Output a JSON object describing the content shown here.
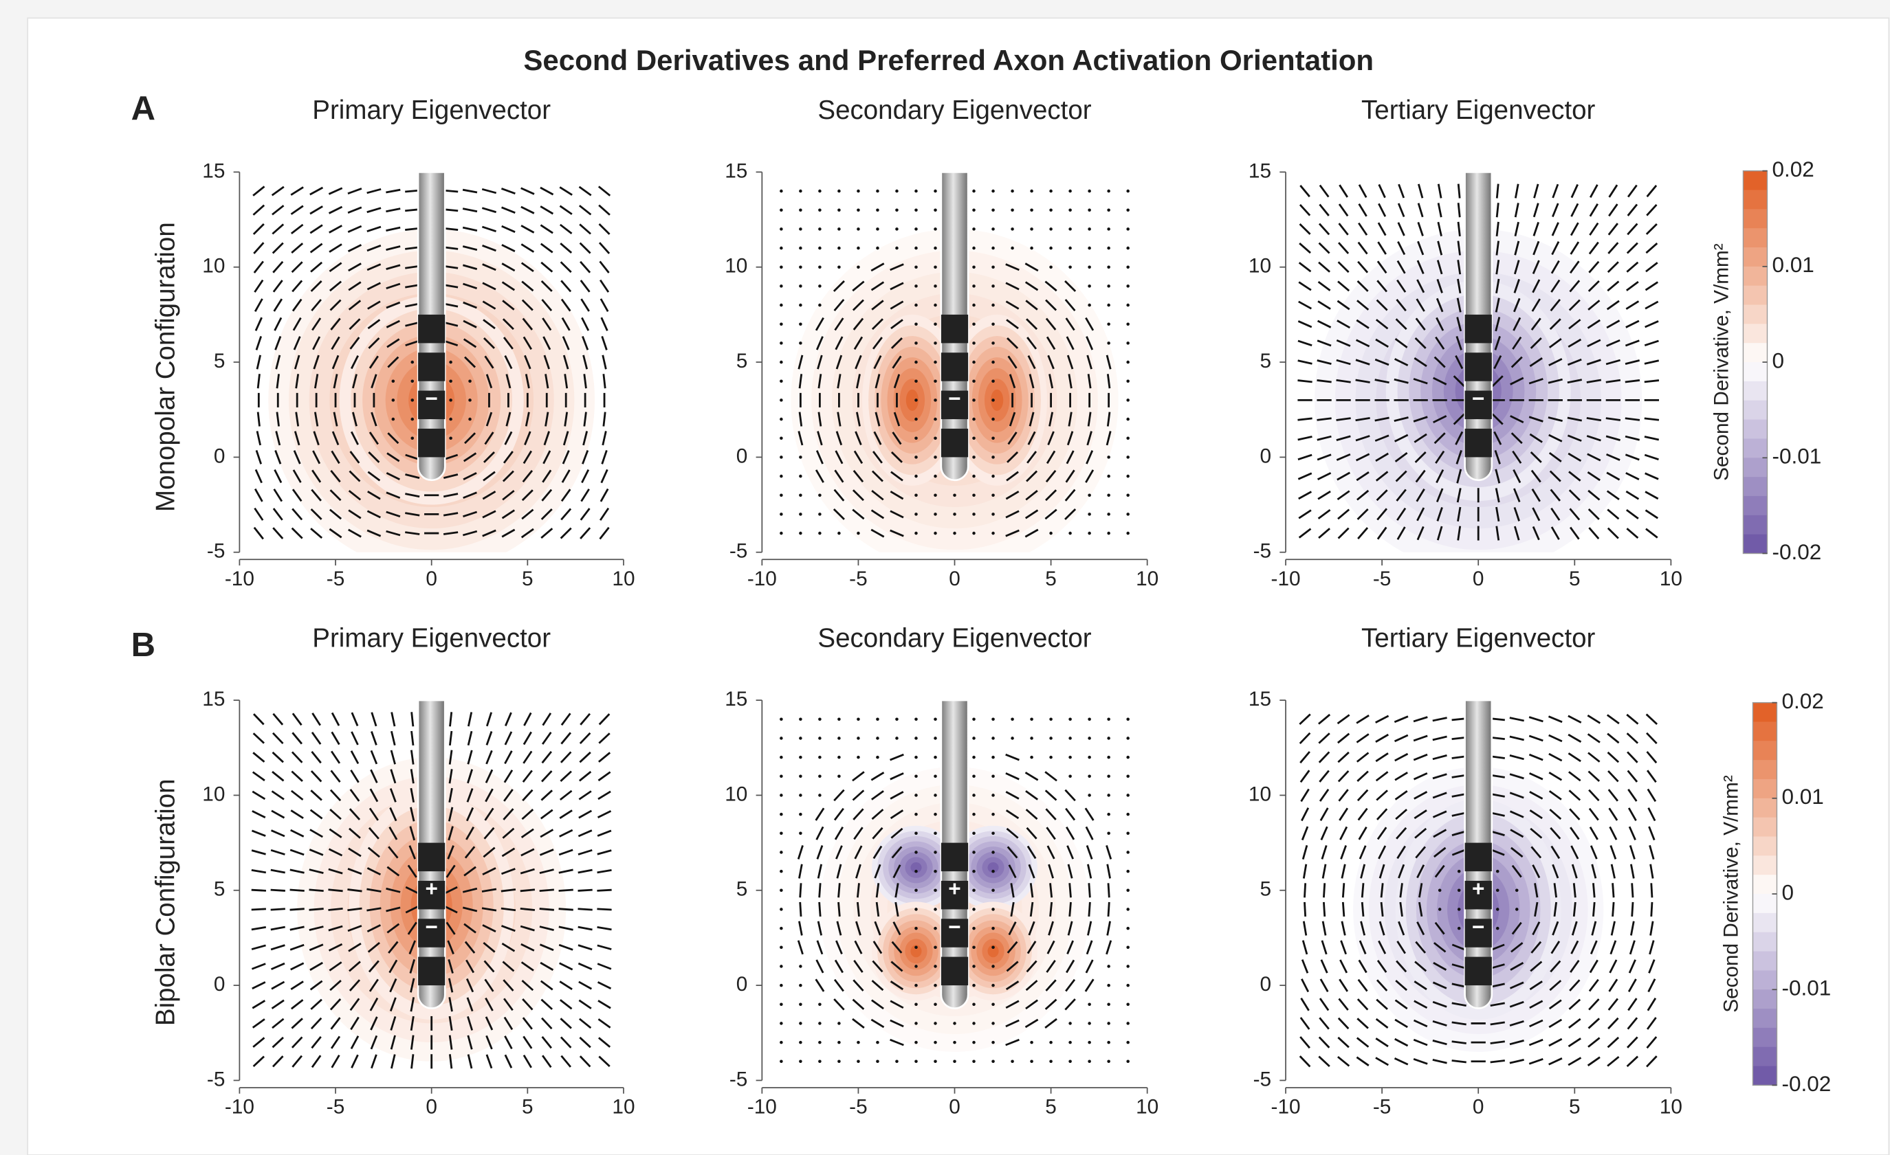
{
  "title": "Second Derivatives and Preferred Axon Activation Orientation",
  "panel_labels": [
    "A",
    "B"
  ],
  "row_labels": [
    "Monopolar Configuration",
    "Bipolar Configuration"
  ],
  "chart_data": [
    {
      "type": "heatmap",
      "title": "Primary Eigenvector",
      "xlim": [
        -10,
        10
      ],
      "ylim": [
        -5,
        15
      ],
      "xticks": [
        -10,
        -5,
        0,
        5,
        10
      ],
      "yticks": [
        -5,
        0,
        5,
        10,
        15
      ],
      "electrode_labels": [
        "−"
      ]
    },
    {
      "type": "heatmap",
      "title": "Secondary Eigenvector",
      "xlim": [
        -10,
        10
      ],
      "ylim": [
        -5,
        15
      ],
      "xticks": [
        -10,
        -5,
        0,
        5,
        10
      ],
      "yticks": [
        -5,
        0,
        5,
        10,
        15
      ],
      "electrode_labels": [
        "−"
      ]
    },
    {
      "type": "heatmap",
      "title": "Tertiary Eigenvector",
      "xlim": [
        -10,
        10
      ],
      "ylim": [
        -5,
        15
      ],
      "xticks": [
        -10,
        -5,
        0,
        5,
        10
      ],
      "yticks": [
        -5,
        0,
        5,
        10,
        15
      ],
      "electrode_labels": [
        "−"
      ]
    },
    {
      "type": "heatmap",
      "title": "Primary Eigenvector",
      "xlim": [
        -10,
        10
      ],
      "ylim": [
        -5,
        15
      ],
      "xticks": [
        -10,
        -5,
        0,
        5,
        10
      ],
      "yticks": [
        -5,
        0,
        5,
        10,
        15
      ],
      "electrode_labels": [
        "+",
        "−"
      ]
    },
    {
      "type": "heatmap",
      "title": "Secondary Eigenvector",
      "xlim": [
        -10,
        10
      ],
      "ylim": [
        -5,
        15
      ],
      "xticks": [
        -10,
        -5,
        0,
        5,
        10
      ],
      "yticks": [
        -5,
        0,
        5,
        10,
        15
      ],
      "electrode_labels": [
        "+",
        "−"
      ]
    },
    {
      "type": "heatmap",
      "title": "Tertiary Eigenvector",
      "xlim": [
        -10,
        10
      ],
      "ylim": [
        -5,
        15
      ],
      "xticks": [
        -10,
        -5,
        0,
        5,
        10
      ],
      "yticks": [
        -5,
        0,
        5,
        10,
        15
      ],
      "electrode_labels": [
        "+",
        "−"
      ]
    }
  ],
  "colorbars": [
    {
      "label": "Second Derivative, V/mm²",
      "lim": [
        -0.02,
        0.02
      ],
      "ticks": [
        0.02,
        0.01,
        0,
        -0.01,
        -0.02
      ],
      "colors": [
        "#6a52a3",
        "#ffffff",
        "#e05a1e"
      ]
    },
    {
      "label": "Second Derivative, V/mm²",
      "lim": [
        -0.02,
        0.02
      ],
      "ticks": [
        0.02,
        0.01,
        0,
        -0.01,
        -0.02
      ],
      "colors": [
        "#6a52a3",
        "#ffffff",
        "#e05a1e"
      ]
    }
  ]
}
